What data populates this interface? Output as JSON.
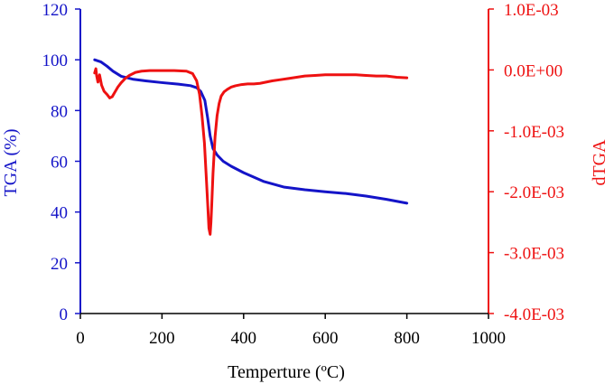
{
  "chart_data": {
    "type": "line",
    "title": "",
    "xlabel": "Temperture (ºC)",
    "ylabel_left": "TGA (%)",
    "ylabel_right": "dTGA",
    "xlim": [
      0,
      1000
    ],
    "ylim_left": [
      0,
      120
    ],
    "ylim_right": [
      -0.004,
      0.001
    ],
    "x_ticks": [
      "0",
      "200",
      "400",
      "600",
      "800",
      "1000"
    ],
    "x_tick_values": [
      0,
      200,
      400,
      600,
      800,
      1000
    ],
    "y_left_ticks": [
      "0",
      "20",
      "40",
      "60",
      "80",
      "100",
      "120"
    ],
    "y_left_tick_values": [
      0,
      20,
      40,
      60,
      80,
      100,
      120
    ],
    "y_right_ticks": [
      "-4.0E-03",
      "-3.0E-03",
      "-2.0E-03",
      "-1.0E-03",
      "0.0E+00",
      "1.0E-03"
    ],
    "y_right_tick_values": [
      -0.004,
      -0.003,
      -0.002,
      -0.001,
      0.0,
      0.001
    ],
    "colors": {
      "tga": "#1414c8",
      "dtga": "#ee1111",
      "left_axis": "#1414c8",
      "right_axis": "#ee1111",
      "bottom_axis": "#000000"
    },
    "series": [
      {
        "name": "TGA",
        "axis": "left",
        "x": [
          35,
          50,
          65,
          80,
          100,
          130,
          160,
          200,
          240,
          270,
          285,
          295,
          305,
          312,
          318,
          325,
          335,
          350,
          370,
          400,
          450,
          500,
          550,
          600,
          650,
          700,
          750,
          800
        ],
        "y": [
          100,
          99.2,
          97.5,
          95.5,
          93.5,
          92.3,
          91.7,
          91.0,
          90.4,
          89.8,
          89.0,
          87.5,
          84.0,
          77.0,
          70.0,
          65.0,
          62.5,
          60.0,
          58.0,
          55.5,
          52.0,
          49.8,
          48.8,
          48.0,
          47.3,
          46.3,
          45.0,
          43.5
        ]
      },
      {
        "name": "dTGA",
        "axis": "right",
        "x": [
          35,
          38,
          40,
          43,
          47,
          52,
          58,
          65,
          72,
          78,
          85,
          92,
          100,
          110,
          120,
          135,
          150,
          170,
          200,
          230,
          260,
          275,
          285,
          292,
          298,
          304,
          308,
          312,
          315,
          318,
          320,
          322,
          325,
          330,
          335,
          340,
          345,
          352,
          360,
          370,
          380,
          395,
          410,
          425,
          440,
          455,
          470,
          490,
          510,
          530,
          550,
          575,
          600,
          625,
          650,
          675,
          700,
          725,
          750,
          775,
          800
        ],
        "y": [
          -5e-05,
          2e-05,
          -0.0001,
          -0.0002,
          -8e-05,
          -0.00025,
          -0.00035,
          -0.0004,
          -0.00046,
          -0.00044,
          -0.00036,
          -0.00028,
          -0.00021,
          -0.00014,
          -9e-05,
          -4e-05,
          -2e-05,
          -1e-05,
          -1e-05,
          -1e-05,
          -2e-05,
          -6e-05,
          -0.00018,
          -0.0004,
          -0.00075,
          -0.0012,
          -0.0017,
          -0.0022,
          -0.0026,
          -0.0027,
          -0.0025,
          -0.0022,
          -0.0017,
          -0.0011,
          -0.00075,
          -0.00055,
          -0.00043,
          -0.00036,
          -0.00032,
          -0.00028,
          -0.00026,
          -0.00024,
          -0.00023,
          -0.00023,
          -0.00022,
          -0.0002,
          -0.00018,
          -0.00016,
          -0.00014,
          -0.00012,
          -0.0001,
          -9e-05,
          -8e-05,
          -8e-05,
          -8e-05,
          -8e-05,
          -9e-05,
          -0.0001,
          -0.0001,
          -0.00012,
          -0.00013
        ]
      }
    ]
  }
}
